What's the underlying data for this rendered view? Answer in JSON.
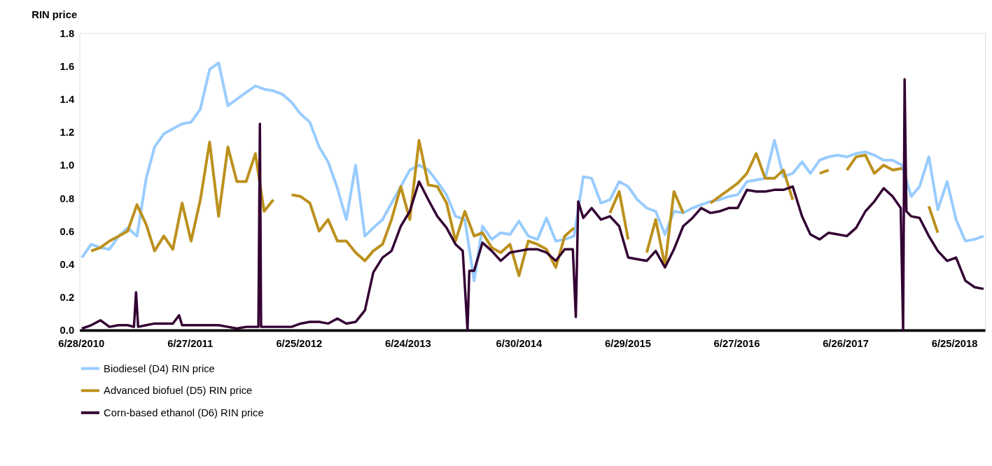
{
  "chart_data": {
    "type": "line",
    "ylabel": "RIN price",
    "ylim": [
      0,
      1.8
    ],
    "yticks": [
      {
        "value": 0,
        "label": "0.0"
      },
      0.2,
      0.4,
      0.6,
      0.8,
      {
        "value": 1,
        "label": "1.0"
      },
      1.2,
      1.4,
      1.6,
      1.8
    ],
    "xlim": [
      "2010-06-23",
      "2018-10-06"
    ],
    "xticks": [
      {
        "value": "2010-06-28",
        "label": "6/28/2010"
      },
      {
        "value": "2011-06-27",
        "label": "6/27/2011"
      },
      {
        "value": "2012-06-25",
        "label": "6/25/2012"
      },
      {
        "value": "2013-06-24",
        "label": "6/24/2013"
      },
      {
        "value": "2014-06-30",
        "label": "6/30/2014"
      },
      {
        "value": "2015-06-29",
        "label": "6/29/2015"
      },
      {
        "value": "2016-06-27",
        "label": "6/27/2016"
      },
      {
        "value": "2017-06-26",
        "label": "6/26/2017"
      },
      {
        "value": "2018-06-25",
        "label": "6/25/2018"
      }
    ],
    "grid": false,
    "legend": "bottom left",
    "line_style": "solid",
    "marker": "none",
    "x": [
      "2010-07-01",
      "2010-08-01",
      "2010-09-01",
      "2010-10-01",
      "2010-11-01",
      "2010-12-01",
      "2011-01-01",
      "2011-02-01",
      "2011-03-01",
      "2011-04-01",
      "2011-05-01",
      "2011-06-01",
      "2011-07-01",
      "2011-08-01",
      "2011-09-01",
      "2011-10-01",
      "2011-11-01",
      "2011-12-01",
      "2012-01-01",
      "2012-02-01",
      "2012-03-01",
      "2012-04-01",
      "2012-05-01",
      "2012-06-01",
      "2012-07-01",
      "2012-08-01",
      "2012-09-01",
      "2012-10-01",
      "2012-11-01",
      "2012-12-01",
      "2013-01-01",
      "2013-02-01",
      "2013-03-01",
      "2013-04-01",
      "2013-05-01",
      "2013-06-01",
      "2013-07-01",
      "2013-08-01",
      "2013-09-01",
      "2013-10-01",
      "2013-11-01",
      "2013-12-01",
      "2014-01-01",
      "2014-02-01",
      "2014-03-01",
      "2014-04-01",
      "2014-05-01",
      "2014-06-01",
      "2014-07-01",
      "2014-08-01",
      "2014-09-01",
      "2014-10-01",
      "2014-11-01",
      "2014-12-01",
      "2015-01-01",
      "2015-02-01",
      "2015-03-01",
      "2015-04-01",
      "2015-05-01",
      "2015-06-01",
      "2015-07-01",
      "2015-08-01",
      "2015-09-01",
      "2015-10-01",
      "2015-11-01",
      "2015-12-01",
      "2016-01-01",
      "2016-02-01",
      "2016-03-01",
      "2016-04-01",
      "2016-05-01",
      "2016-06-01",
      "2016-07-01",
      "2016-08-01",
      "2016-09-01",
      "2016-10-01",
      "2016-11-01",
      "2016-12-01",
      "2017-01-01",
      "2017-02-01",
      "2017-03-01",
      "2017-04-01",
      "2017-05-01",
      "2017-06-01",
      "2017-07-01",
      "2017-08-01",
      "2017-09-01",
      "2017-10-01",
      "2017-11-01",
      "2017-12-01",
      "2018-01-01",
      "2018-02-01",
      "2018-03-01",
      "2018-04-01",
      "2018-05-01",
      "2018-06-01",
      "2018-07-01",
      "2018-08-01",
      "2018-09-01",
      "2018-10-01"
    ],
    "series": [
      {
        "name": "Biodiesel (D4) RIN price",
        "color": "#99ccff",
        "values": [
          0.44,
          0.52,
          0.5,
          0.49,
          0.57,
          0.62,
          0.57,
          0.92,
          1.11,
          1.19,
          1.22,
          1.25,
          1.26,
          1.34,
          1.58,
          1.62,
          1.36,
          1.4,
          1.44,
          1.48,
          1.46,
          1.45,
          1.43,
          1.38,
          1.31,
          1.26,
          1.11,
          1.02,
          0.86,
          0.67,
          1.0,
          0.57,
          0.62,
          0.67,
          0.77,
          0.87,
          0.97,
          1.0,
          0.97,
          0.9,
          0.82,
          0.69,
          0.67,
          0.3,
          0.63,
          0.55,
          0.59,
          0.58,
          0.66,
          0.57,
          0.55,
          0.68,
          0.54,
          0.55,
          0.57,
          0.93,
          0.92,
          0.77,
          0.79,
          0.9,
          0.87,
          0.79,
          0.74,
          0.72,
          0.58,
          0.72,
          0.71,
          0.74,
          0.76,
          0.78,
          0.79,
          0.81,
          0.82,
          0.9,
          0.91,
          0.92,
          1.15,
          0.93,
          0.95,
          1.02,
          0.95,
          1.03,
          1.05,
          1.06,
          1.05,
          1.07,
          1.08,
          1.06,
          1.03,
          1.03,
          1.0,
          0.81,
          0.87,
          1.05,
          0.73,
          0.9,
          0.67,
          0.54,
          0.55,
          0.57
        ]
      },
      {
        "name": "Advanced biofuel (D5) RIN price",
        "color": "#bc901c",
        "values": [
          null,
          0.48,
          0.5,
          0.54,
          0.57,
          0.6,
          0.76,
          0.64,
          0.48,
          0.57,
          0.49,
          0.77,
          0.54,
          0.79,
          1.14,
          0.69,
          1.11,
          0.9,
          0.9,
          1.07,
          0.72,
          0.79,
          null,
          0.82,
          0.81,
          0.77,
          0.6,
          0.67,
          0.54,
          0.54,
          0.47,
          0.42,
          0.48,
          0.52,
          0.67,
          0.87,
          0.67,
          1.15,
          0.88,
          0.87,
          0.77,
          0.54,
          0.72,
          0.57,
          0.59,
          0.5,
          0.47,
          0.52,
          0.33,
          0.54,
          0.52,
          0.49,
          0.38,
          0.57,
          0.62,
          null,
          null,
          null,
          0.71,
          0.84,
          0.55,
          null,
          0.47,
          0.67,
          0.39,
          0.84,
          0.71,
          null,
          null,
          0.77,
          0.81,
          0.85,
          0.89,
          0.95,
          1.07,
          0.92,
          0.92,
          0.97,
          0.79,
          null,
          null,
          0.95,
          0.97,
          null,
          0.97,
          1.05,
          1.06,
          0.95,
          1.0,
          0.97,
          0.98,
          null,
          null,
          0.75,
          0.59,
          null,
          null,
          null,
          null,
          null
        ]
      },
      {
        "name": "Corn-based ethanol (D6) RIN price",
        "color": "#330033",
        "x": [
          "2010-07-01",
          "2010-08-01",
          "2010-09-01",
          "2010-10-01",
          "2010-11-01",
          "2010-12-01",
          "2010-12-22",
          "2010-12-29",
          "2011-01-05",
          "2011-02-01",
          "2011-03-01",
          "2011-04-01",
          "2011-05-01",
          "2011-05-22",
          "2011-06-01",
          "2011-07-01",
          "2011-08-01",
          "2011-09-01",
          "2011-10-01",
          "2011-11-01",
          "2011-12-01",
          "2012-01-01",
          "2012-02-01",
          "2012-02-11",
          "2012-02-16",
          "2012-02-20",
          "2012-03-01",
          "2012-04-01",
          "2012-05-01",
          "2012-06-01",
          "2012-07-01",
          "2012-08-01",
          "2012-09-01",
          "2012-10-01",
          "2012-11-01",
          "2012-12-01",
          "2013-01-01",
          "2013-02-01",
          "2013-03-01",
          "2013-04-01",
          "2013-05-01",
          "2013-06-01",
          "2013-07-01",
          "2013-08-01",
          "2013-09-01",
          "2013-10-01",
          "2013-11-01",
          "2013-12-01",
          "2013-12-25",
          "2014-01-10",
          "2014-01-16",
          "2014-02-01",
          "2014-03-01",
          "2014-04-01",
          "2014-05-01",
          "2014-06-01",
          "2014-07-01",
          "2014-08-01",
          "2014-09-01",
          "2014-10-01",
          "2014-11-01",
          "2014-12-01",
          "2014-12-28",
          "2015-01-07",
          "2015-01-15",
          "2015-02-01",
          "2015-03-01",
          "2015-04-01",
          "2015-05-01",
          "2015-06-01",
          "2015-07-01",
          "2015-08-01",
          "2015-09-01",
          "2015-10-01",
          "2015-11-01",
          "2015-12-01",
          "2016-01-01",
          "2016-02-01",
          "2016-03-01",
          "2016-04-01",
          "2016-05-01",
          "2016-06-01",
          "2016-07-01",
          "2016-08-01",
          "2016-09-01",
          "2016-10-01",
          "2016-11-01",
          "2016-12-01",
          "2017-01-01",
          "2017-02-01",
          "2017-03-01",
          "2017-04-01",
          "2017-05-01",
          "2017-06-01",
          "2017-07-01",
          "2017-08-01",
          "2017-09-01",
          "2017-10-01",
          "2017-11-01",
          "2017-12-01",
          "2017-12-28",
          "2018-01-05",
          "2018-01-10",
          "2018-01-16",
          "2018-02-01",
          "2018-03-01",
          "2018-04-01",
          "2018-05-01",
          "2018-06-01",
          "2018-07-01",
          "2018-08-01",
          "2018-09-01",
          "2018-10-01"
        ],
        "values": [
          0.01,
          0.03,
          0.06,
          0.02,
          0.03,
          0.03,
          0.02,
          0.23,
          0.02,
          0.03,
          0.04,
          0.04,
          0.04,
          0.09,
          0.03,
          0.03,
          0.03,
          0.03,
          0.03,
          0.02,
          0.01,
          0.02,
          0.02,
          0.02,
          1.25,
          0.02,
          0.02,
          0.02,
          0.02,
          0.02,
          0.04,
          0.05,
          0.05,
          0.04,
          0.07,
          0.04,
          0.05,
          0.12,
          0.35,
          0.44,
          0.48,
          0.63,
          0.72,
          0.9,
          0.79,
          0.69,
          0.62,
          0.52,
          0.48,
          0.0,
          0.36,
          0.36,
          0.53,
          0.48,
          0.42,
          0.47,
          0.48,
          0.49,
          0.49,
          0.47,
          0.42,
          0.49,
          0.49,
          0.08,
          0.78,
          0.68,
          0.74,
          0.67,
          0.69,
          0.63,
          0.44,
          0.43,
          0.42,
          0.48,
          0.38,
          0.49,
          0.63,
          0.68,
          0.74,
          0.71,
          0.72,
          0.74,
          0.74,
          0.85,
          0.84,
          0.84,
          0.85,
          0.85,
          0.87,
          0.69,
          0.58,
          0.55,
          0.59,
          0.58,
          0.57,
          0.62,
          0.72,
          0.78,
          0.86,
          0.81,
          0.74,
          0.0,
          1.52,
          0.72,
          0.69,
          0.68,
          0.57,
          0.48,
          0.42,
          0.44,
          0.3,
          0.26,
          0.25
        ]
      }
    ]
  }
}
